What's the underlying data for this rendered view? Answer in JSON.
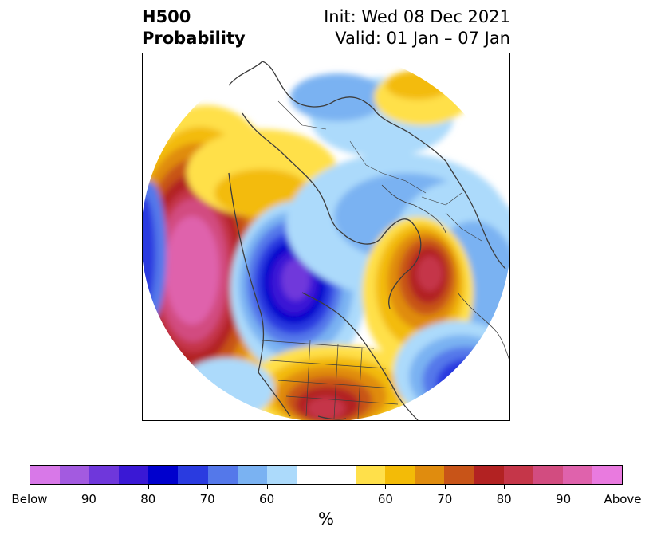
{
  "title": {
    "variable": "H500",
    "product": "Probability",
    "init": "Init: Wed 08 Dec 2021",
    "valid": "Valid: 01 Jan – 07 Jan"
  },
  "colorbar": {
    "colors": [
      "#d878e8",
      "#a35ae0",
      "#6f37db",
      "#3a18d5",
      "#0000cd",
      "#2a3be0",
      "#5478ea",
      "#7ab2f2",
      "#acdafb",
      "#ffffff",
      "#ffffff",
      "#ffe04a",
      "#f3bb07",
      "#e08c0e",
      "#c85418",
      "#b22222",
      "#c53649",
      "#d24c80",
      "#df62ac",
      "#e97adf"
    ],
    "tick_labels": [
      "Below",
      "90",
      "80",
      "70",
      "60",
      "60",
      "70",
      "80",
      "90",
      "Above"
    ],
    "unit": "%"
  },
  "colors": {
    "land_outline": "#3c3c3c",
    "frame": "#000000"
  }
}
